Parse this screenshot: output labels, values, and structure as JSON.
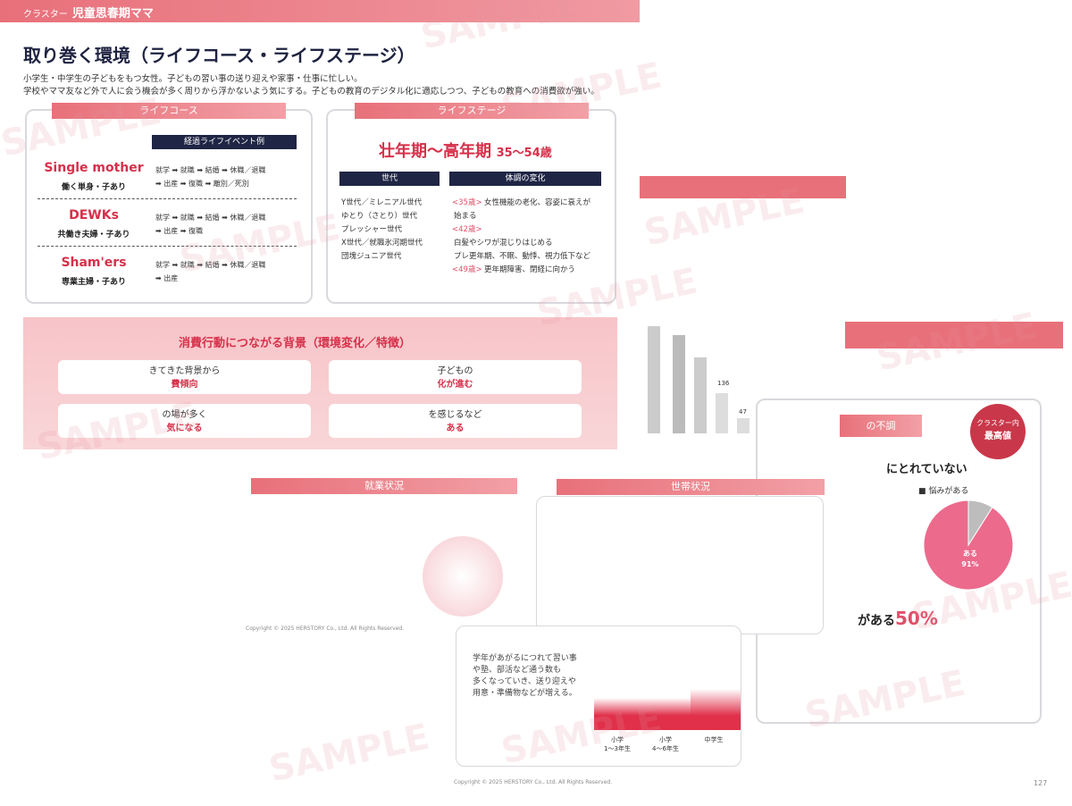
{
  "header": {
    "label": "クラスター",
    "title": "児童思春期ママ"
  },
  "title": "取り巻く環境（ライフコース・ライフステージ）",
  "description": [
    "小学生・中学生の子どもをもつ女性。子どもの習い事の送り迎えや家事・仕事に忙しい。",
    "学校やママ友など外で人に会う機会が多く周りから浮かないよう気にする。子どもの教育のデジタル化に適応しつつ、子どもの教育への消費欲が強い。"
  ],
  "life_course": {
    "tag": "ライフコース",
    "events_header": "経過ライフイベント例",
    "rows": [
      {
        "name": "Single mother",
        "sub": "働く単身・子あり",
        "events": [
          "就学 ➡ 就職 ➡ 結婚 ➡ 休職／退職",
          "➡ 出産 ➡ 復職 ➡ 離別／死別"
        ]
      },
      {
        "name": "DEWKs",
        "sub": "共働き夫婦・子あり",
        "events": [
          "就学 ➡ 就職 ➡ 結婚 ➡ 休職／退職",
          "➡ 出産 ➡ 復職"
        ]
      },
      {
        "name": "Sham'ers",
        "sub": "専業主婦・子あり",
        "events": [
          "就学 ➡ 就職 ➡ 結婚 ➡ 休職／退職",
          "➡ 出産"
        ]
      }
    ]
  },
  "life_stage": {
    "tag": "ライフステージ",
    "stage": "壮年期～高年期",
    "age": "35～54歳",
    "generation_header": "世代",
    "change_header": "体調の変化",
    "generations": [
      "Y世代／ミレニアル世代",
      "ゆとり（さとり）世代",
      "プレッシャー世代",
      "X世代／就職氷河期世代",
      "団塊ジュニア世代"
    ],
    "changes": [
      {
        "age": "<35歳>",
        "text": "女性機能の老化、容姿に衰えが"
      },
      {
        "age": "",
        "text": "始まる"
      },
      {
        "age": "<42歳>",
        "text": ""
      },
      {
        "age": "",
        "text": "白髪やシワが混じりはじめる"
      },
      {
        "age": "",
        "text": "プレ更年期、不眠、動悸、視力低下など"
      },
      {
        "age": "<49歳>",
        "text": "更年期障害、閉経に向かう"
      }
    ]
  },
  "background": {
    "title": "消費行動につながる背景（環境変化／特徴）",
    "boxes": [
      [
        "きてきた背景から",
        "費傾向"
      ],
      [
        "子どもの",
        "化が進む"
      ],
      [
        "の場が多く",
        "気になる"
      ],
      [
        "を感じるなど",
        "ある"
      ]
    ]
  },
  "chart_fragment": {
    "labels": [
      136,
      47,
      7
    ]
  },
  "slides": {
    "employment": "就業状況",
    "household": "世帯状況",
    "condition": "の不調",
    "badge": [
      "クラスター内",
      "最高値"
    ],
    "heading": "にとれていない",
    "legend": "悩みがある",
    "pie_label": "ある",
    "pie_value": 91,
    "pie_value_label": "91%",
    "pie_rest": 9,
    "stat_text": "がある",
    "stat_value": "50%",
    "grade_text": [
      "学年があがるにつれて習い事",
      "や塾、部活など通う数も",
      "多くなっていき、送り迎えや",
      "用意・準備物などが増える。"
    ],
    "grades": [
      "小学\n1～3年生",
      "小学\n4～6年生",
      "中学生"
    ]
  },
  "copyright": "Copyright © 2025 HERSTORY Co., Ltd. All Rights Reserved.",
  "page_number": "127",
  "watermark": "SAMPLE"
}
